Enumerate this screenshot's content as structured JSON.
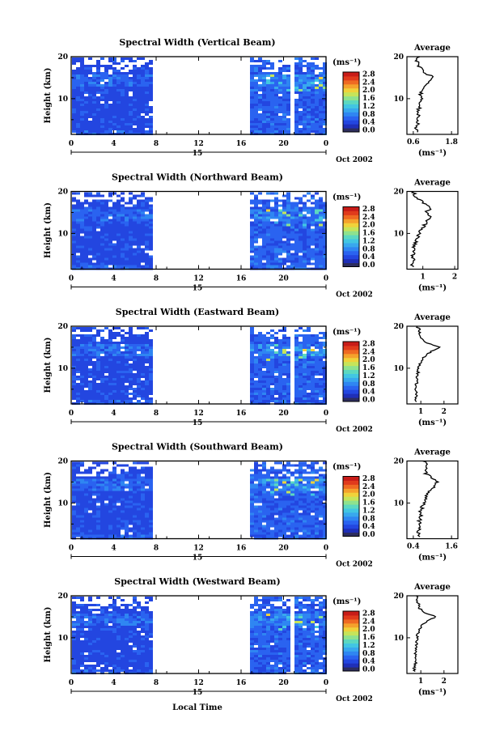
{
  "figure": {
    "xlabel": "Local Time",
    "cbar_unit": "(ms⁻¹)",
    "cbar_ticks": [
      "2.8",
      "2.4",
      "2.0",
      "1.6",
      "1.2",
      "0.8",
      "0.4",
      "0.0"
    ],
    "date_label": "Oct 2002",
    "day_label": "15",
    "ylabel": "Height (km)",
    "avg_title": "Average",
    "avg_xlabel": "(ms⁻¹)"
  },
  "colors": {
    "scale": [
      "#2d2d5e",
      "#1f2fb8",
      "#2346e0",
      "#2a63f0",
      "#2f86f2",
      "#38a8ee",
      "#42c6e2",
      "#5cd8c0",
      "#8ee28e",
      "#c6e45a",
      "#f0d23a",
      "#f5a22c",
      "#ef6a22",
      "#e03a1c",
      "#c81c18"
    ],
    "background": "#1f44d8"
  },
  "chart_data": [
    {
      "type": "heatmap",
      "title": "Spectral Width (Vertical Beam)",
      "xlabel": "Local Time",
      "ylabel": "Height (km)",
      "x_ticks": [
        "0",
        "4",
        "8",
        "12",
        "16",
        "20",
        "0"
      ],
      "y_ticks": [
        "20",
        "10"
      ],
      "xlim": [
        0,
        24
      ],
      "ylim": [
        1.5,
        20
      ],
      "data_gaps_hours": [
        [
          7.5,
          16.5
        ],
        [
          20.6,
          21.0
        ]
      ],
      "colorbar": {
        "label": "(ms⁻¹)",
        "min": 0.0,
        "max": 2.8
      },
      "average_profile": {
        "title": "Average",
        "xlabel": "(ms⁻¹)",
        "x_ticks": [
          "0.6",
          "1.8"
        ],
        "xlim": [
          0.4,
          2.0
        ],
        "height_km": [
          2,
          3,
          4,
          5,
          6,
          7,
          8,
          9,
          10,
          11,
          12,
          13,
          14,
          15,
          16,
          17,
          18,
          19,
          20
        ],
        "width": [
          0.72,
          0.68,
          0.75,
          0.7,
          0.78,
          0.72,
          0.8,
          0.76,
          0.85,
          0.82,
          0.9,
          0.98,
          1.05,
          1.25,
          1.0,
          0.85,
          0.75,
          0.7,
          0.8
        ]
      }
    },
    {
      "type": "heatmap",
      "title": "Spectral Width (Northward Beam)",
      "xlabel": "Local Time",
      "ylabel": "Height (km)",
      "x_ticks": [
        "0",
        "4",
        "8",
        "12",
        "16",
        "20",
        "0"
      ],
      "y_ticks": [
        "20",
        "10"
      ],
      "xlim": [
        0,
        24
      ],
      "ylim": [
        1.5,
        20
      ],
      "data_gaps_hours": [
        [
          7.5,
          16.5
        ]
      ],
      "colorbar": {
        "label": "(ms⁻¹)",
        "min": 0.0,
        "max": 2.8
      },
      "average_profile": {
        "title": "Average",
        "xlabel": "(ms⁻¹)",
        "x_ticks": [
          "1",
          "2"
        ],
        "xlim": [
          0.5,
          2.1
        ],
        "height_km": [
          2,
          3,
          4,
          5,
          6,
          7,
          8,
          9,
          10,
          11,
          12,
          13,
          14,
          15,
          16,
          17,
          18,
          19,
          20
        ],
        "width": [
          0.7,
          0.65,
          0.72,
          0.68,
          0.75,
          0.7,
          0.78,
          0.82,
          0.9,
          0.95,
          1.05,
          1.15,
          1.2,
          1.1,
          1.25,
          1.05,
          0.9,
          0.75,
          0.7
        ]
      }
    },
    {
      "type": "heatmap",
      "title": "Spectral Width (Eastward Beam)",
      "xlabel": "Local Time",
      "ylabel": "Height (km)",
      "x_ticks": [
        "0",
        "4",
        "8",
        "12",
        "16",
        "20",
        "0"
      ],
      "y_ticks": [
        "20",
        "10"
      ],
      "xlim": [
        0,
        24
      ],
      "ylim": [
        1.5,
        20
      ],
      "data_gaps_hours": [
        [
          7.5,
          16.5
        ],
        [
          20.6,
          21.0
        ]
      ],
      "colorbar": {
        "label": "(ms⁻¹)",
        "min": 0.0,
        "max": 2.8
      },
      "average_profile": {
        "title": "Average",
        "xlabel": "(ms⁻¹)",
        "x_ticks": [
          "1",
          "2"
        ],
        "xlim": [
          0.4,
          2.6
        ],
        "height_km": [
          2,
          3,
          4,
          5,
          6,
          7,
          8,
          9,
          10,
          11,
          12,
          13,
          14,
          15,
          16,
          17,
          18,
          19,
          20
        ],
        "width": [
          0.8,
          0.75,
          0.82,
          0.78,
          0.8,
          0.85,
          0.8,
          0.88,
          0.9,
          0.95,
          1.05,
          1.2,
          1.45,
          1.85,
          1.3,
          1.0,
          0.9,
          0.95,
          0.85
        ]
      }
    },
    {
      "type": "heatmap",
      "title": "Spectral Width (Southward Beam)",
      "xlabel": "Local Time",
      "ylabel": "Height (km)",
      "x_ticks": [
        "0",
        "4",
        "8",
        "12",
        "16",
        "20",
        "0"
      ],
      "y_ticks": [
        "20",
        "10"
      ],
      "xlim": [
        0,
        24
      ],
      "ylim": [
        1.5,
        20
      ],
      "data_gaps_hours": [
        [
          7.5,
          16.5
        ]
      ],
      "colorbar": {
        "label": "(ms⁻¹)",
        "min": 0.0,
        "max": 2.8
      },
      "average_profile": {
        "title": "Average",
        "xlabel": "(ms⁻¹)",
        "x_ticks": [
          "0.4",
          "1.6"
        ],
        "xlim": [
          0.2,
          1.8
        ],
        "height_km": [
          2,
          3,
          4,
          5,
          6,
          7,
          8,
          9,
          10,
          11,
          12,
          13,
          14,
          15,
          16,
          17,
          18,
          19,
          20
        ],
        "width": [
          0.6,
          0.55,
          0.62,
          0.58,
          0.6,
          0.65,
          0.62,
          0.68,
          0.72,
          0.78,
          0.85,
          0.95,
          1.05,
          1.15,
          1.0,
          0.8,
          0.75,
          0.85,
          0.7
        ]
      }
    },
    {
      "type": "heatmap",
      "title": "Spectral Width (Westward Beam)",
      "xlabel": "Local Time",
      "ylabel": "Height (km)",
      "x_ticks": [
        "0",
        "4",
        "8",
        "12",
        "16",
        "20",
        "0"
      ],
      "y_ticks": [
        "20",
        "10"
      ],
      "xlim": [
        0,
        24
      ],
      "ylim": [
        1.5,
        20
      ],
      "data_gaps_hours": [
        [
          7.5,
          16.5
        ],
        [
          20.6,
          21.0
        ]
      ],
      "colorbar": {
        "label": "(ms⁻¹)",
        "min": 0.0,
        "max": 2.8
      },
      "average_profile": {
        "title": "Average",
        "xlabel": "(ms⁻¹)",
        "x_ticks": [
          "1",
          "2"
        ],
        "xlim": [
          0.4,
          2.6
        ],
        "height_km": [
          2,
          3,
          4,
          5,
          6,
          7,
          8,
          9,
          10,
          11,
          12,
          13,
          14,
          15,
          16,
          17,
          18,
          19,
          20
        ],
        "width": [
          0.75,
          0.72,
          0.78,
          0.75,
          0.78,
          0.8,
          0.78,
          0.82,
          0.85,
          0.88,
          0.95,
          1.05,
          1.25,
          1.65,
          1.2,
          0.95,
          0.9,
          0.85,
          0.8
        ]
      }
    }
  ]
}
